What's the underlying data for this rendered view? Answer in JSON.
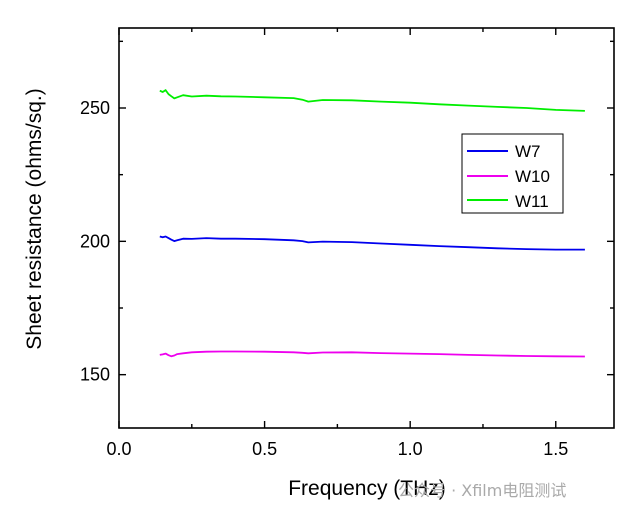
{
  "chart_data": {
    "type": "line",
    "xlabel": "Frequency (THz)",
    "ylabel": "Sheet resistance (ohms/sq.)",
    "xlim": [
      0.0,
      1.7
    ],
    "ylim": [
      130,
      280
    ],
    "x_ticks": [
      0.0,
      0.5,
      1.0,
      1.5
    ],
    "x_tick_labels": [
      "0.0",
      "0.5",
      "1.0",
      "1.5"
    ],
    "y_ticks": [
      150,
      200,
      250
    ],
    "y_tick_labels": [
      "150",
      "200",
      "250"
    ],
    "grid": false,
    "legend_position": "right",
    "x": [
      0.14,
      0.15,
      0.16,
      0.17,
      0.18,
      0.19,
      0.2,
      0.22,
      0.25,
      0.3,
      0.35,
      0.4,
      0.5,
      0.6,
      0.63,
      0.65,
      0.7,
      0.8,
      0.9,
      1.0,
      1.1,
      1.2,
      1.3,
      1.4,
      1.5,
      1.6
    ],
    "series": [
      {
        "name": "W7",
        "color": "#0000ee",
        "values": [
          201.8,
          201.5,
          201.8,
          201.2,
          200.6,
          200.1,
          200.4,
          201.0,
          200.9,
          201.2,
          201.0,
          201.0,
          200.8,
          200.4,
          200.1,
          199.6,
          199.9,
          199.7,
          199.2,
          198.7,
          198.2,
          197.8,
          197.4,
          197.1,
          196.9,
          196.9
        ]
      },
      {
        "name": "W10",
        "color": "#ee00ee",
        "values": [
          157.4,
          157.6,
          157.9,
          157.3,
          156.9,
          157.2,
          157.7,
          158.0,
          158.4,
          158.6,
          158.7,
          158.7,
          158.6,
          158.4,
          158.2,
          158.0,
          158.3,
          158.4,
          158.1,
          157.9,
          157.7,
          157.4,
          157.2,
          157.0,
          156.9,
          156.8
        ]
      },
      {
        "name": "W11",
        "color": "#00ee00",
        "values": [
          256.5,
          256.0,
          256.7,
          255.2,
          254.4,
          253.6,
          254.0,
          254.8,
          254.3,
          254.6,
          254.4,
          254.3,
          254.0,
          253.7,
          253.1,
          252.4,
          253.0,
          252.9,
          252.4,
          252.0,
          251.4,
          250.9,
          250.4,
          250.0,
          249.3,
          248.9
        ]
      }
    ]
  },
  "watermark": "公众号 · Xfilm电阻测试"
}
